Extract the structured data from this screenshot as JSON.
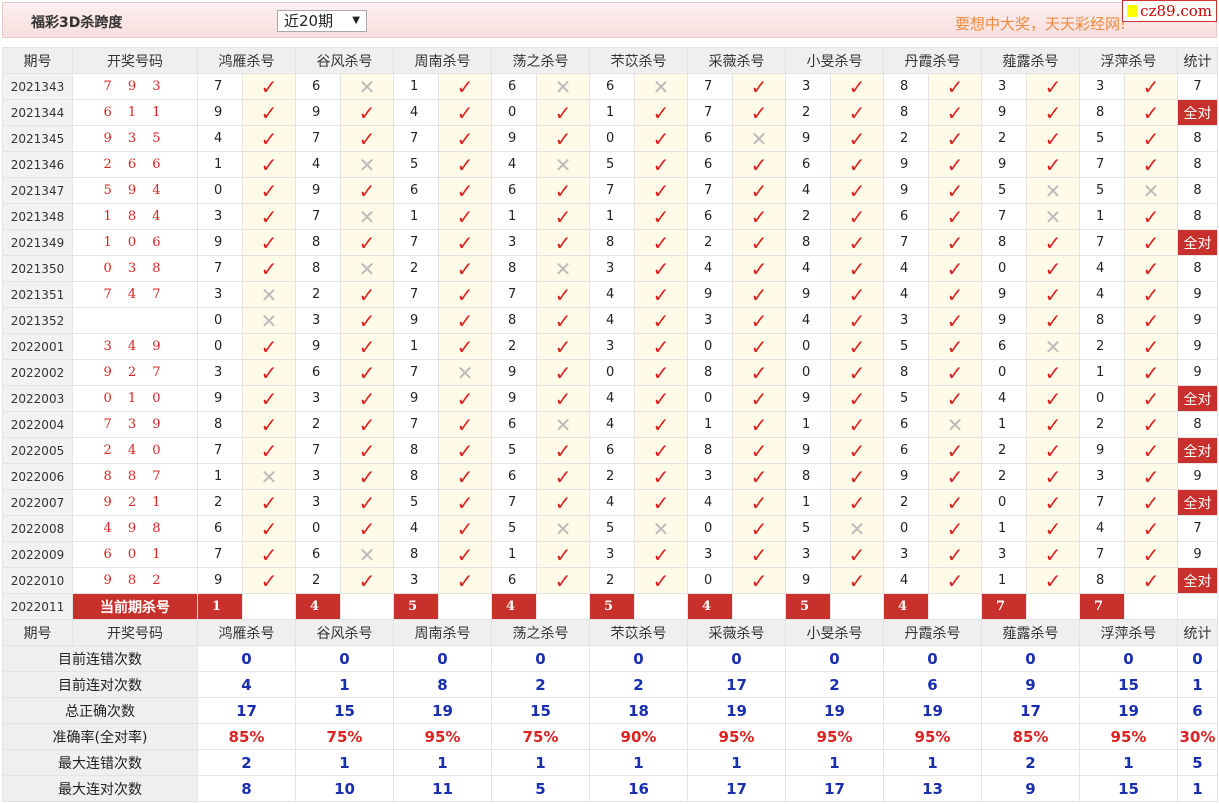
{
  "header": {
    "title": "福彩3D杀跨度",
    "range_select": "近20期",
    "slogan": "要想中大奖，天天彩经网!",
    "logo": "cz89.com"
  },
  "columns": {
    "period": "期号",
    "draw": "开奖号码",
    "experts": [
      "鸿雁杀号",
      "谷风杀号",
      "周南杀号",
      "荡之杀号",
      "芣苡杀号",
      "采薇杀号",
      "小旻杀号",
      "丹霞杀号",
      "薤露杀号",
      "浮萍杀号"
    ],
    "stat": "统计"
  },
  "marks": {
    "ok": "✓",
    "wrong": "✕"
  },
  "colors": {
    "accent": "#c8302c",
    "ok": "#e02020",
    "stat_blue": "#1a2fb0"
  },
  "rows": [
    {
      "period": "2021343",
      "draw": "7 9 3",
      "picks": [
        [
          7,
          1
        ],
        [
          6,
          0
        ],
        [
          1,
          1
        ],
        [
          6,
          0
        ],
        [
          6,
          0
        ],
        [
          7,
          1
        ],
        [
          3,
          1
        ],
        [
          8,
          1
        ],
        [
          3,
          1
        ],
        [
          3,
          1
        ]
      ],
      "stat": "7"
    },
    {
      "period": "2021344",
      "draw": "6 1 1",
      "picks": [
        [
          9,
          1
        ],
        [
          9,
          1
        ],
        [
          4,
          1
        ],
        [
          0,
          1
        ],
        [
          1,
          1
        ],
        [
          7,
          1
        ],
        [
          2,
          1
        ],
        [
          8,
          1
        ],
        [
          9,
          1
        ],
        [
          8,
          1
        ]
      ],
      "stat": "全对"
    },
    {
      "period": "2021345",
      "draw": "9 3 5",
      "picks": [
        [
          4,
          1
        ],
        [
          7,
          1
        ],
        [
          7,
          1
        ],
        [
          9,
          1
        ],
        [
          0,
          1
        ],
        [
          6,
          0
        ],
        [
          9,
          1
        ],
        [
          2,
          1
        ],
        [
          2,
          1
        ],
        [
          5,
          1
        ]
      ],
      "stat": "8"
    },
    {
      "period": "2021346",
      "draw": "2 6 6",
      "picks": [
        [
          1,
          1
        ],
        [
          4,
          0
        ],
        [
          5,
          1
        ],
        [
          4,
          0
        ],
        [
          5,
          1
        ],
        [
          6,
          1
        ],
        [
          6,
          1
        ],
        [
          9,
          1
        ],
        [
          9,
          1
        ],
        [
          7,
          1
        ]
      ],
      "stat": "8"
    },
    {
      "period": "2021347",
      "draw": "5 9 4",
      "picks": [
        [
          0,
          1
        ],
        [
          9,
          1
        ],
        [
          6,
          1
        ],
        [
          6,
          1
        ],
        [
          7,
          1
        ],
        [
          7,
          1
        ],
        [
          4,
          1
        ],
        [
          9,
          1
        ],
        [
          5,
          0
        ],
        [
          5,
          0
        ]
      ],
      "stat": "8"
    },
    {
      "period": "2021348",
      "draw": "1 8 4",
      "picks": [
        [
          3,
          1
        ],
        [
          7,
          0
        ],
        [
          1,
          1
        ],
        [
          1,
          1
        ],
        [
          1,
          1
        ],
        [
          6,
          1
        ],
        [
          2,
          1
        ],
        [
          6,
          1
        ],
        [
          7,
          0
        ],
        [
          1,
          1
        ]
      ],
      "stat": "8"
    },
    {
      "period": "2021349",
      "draw": "1 0 6",
      "picks": [
        [
          9,
          1
        ],
        [
          8,
          1
        ],
        [
          7,
          1
        ],
        [
          3,
          1
        ],
        [
          8,
          1
        ],
        [
          2,
          1
        ],
        [
          8,
          1
        ],
        [
          7,
          1
        ],
        [
          8,
          1
        ],
        [
          7,
          1
        ]
      ],
      "stat": "全对"
    },
    {
      "period": "2021350",
      "draw": "0 3 8",
      "picks": [
        [
          7,
          1
        ],
        [
          8,
          0
        ],
        [
          2,
          1
        ],
        [
          8,
          0
        ],
        [
          3,
          1
        ],
        [
          4,
          1
        ],
        [
          4,
          1
        ],
        [
          4,
          1
        ],
        [
          0,
          1
        ],
        [
          4,
          1
        ]
      ],
      "stat": "8"
    },
    {
      "period": "2021351",
      "draw": "7 4 7",
      "picks": [
        [
          3,
          0
        ],
        [
          2,
          1
        ],
        [
          7,
          1
        ],
        [
          7,
          1
        ],
        [
          4,
          1
        ],
        [
          9,
          1
        ],
        [
          9,
          1
        ],
        [
          4,
          1
        ],
        [
          9,
          1
        ],
        [
          4,
          1
        ]
      ],
      "stat": "9"
    },
    {
      "period": "2021352",
      "draw": "",
      "picks": [
        [
          0,
          0
        ],
        [
          3,
          1
        ],
        [
          9,
          1
        ],
        [
          8,
          1
        ],
        [
          4,
          1
        ],
        [
          3,
          1
        ],
        [
          4,
          1
        ],
        [
          3,
          1
        ],
        [
          9,
          1
        ],
        [
          8,
          1
        ]
      ],
      "stat": "9"
    },
    {
      "period": "2022001",
      "draw": "3 4 9",
      "picks": [
        [
          0,
          1
        ],
        [
          9,
          1
        ],
        [
          1,
          1
        ],
        [
          2,
          1
        ],
        [
          3,
          1
        ],
        [
          0,
          1
        ],
        [
          0,
          1
        ],
        [
          5,
          1
        ],
        [
          6,
          0
        ],
        [
          2,
          1
        ]
      ],
      "stat": "9"
    },
    {
      "period": "2022002",
      "draw": "9 2 7",
      "picks": [
        [
          3,
          1
        ],
        [
          6,
          1
        ],
        [
          7,
          0
        ],
        [
          9,
          1
        ],
        [
          0,
          1
        ],
        [
          8,
          1
        ],
        [
          0,
          1
        ],
        [
          8,
          1
        ],
        [
          0,
          1
        ],
        [
          1,
          1
        ]
      ],
      "stat": "9"
    },
    {
      "period": "2022003",
      "draw": "0 1 0",
      "picks": [
        [
          9,
          1
        ],
        [
          3,
          1
        ],
        [
          9,
          1
        ],
        [
          9,
          1
        ],
        [
          4,
          1
        ],
        [
          0,
          1
        ],
        [
          9,
          1
        ],
        [
          5,
          1
        ],
        [
          4,
          1
        ],
        [
          0,
          1
        ]
      ],
      "stat": "全对"
    },
    {
      "period": "2022004",
      "draw": "7 3 9",
      "picks": [
        [
          8,
          1
        ],
        [
          2,
          1
        ],
        [
          7,
          1
        ],
        [
          6,
          0
        ],
        [
          4,
          1
        ],
        [
          1,
          1
        ],
        [
          1,
          1
        ],
        [
          6,
          0
        ],
        [
          1,
          1
        ],
        [
          2,
          1
        ]
      ],
      "stat": "8"
    },
    {
      "period": "2022005",
      "draw": "2 4 0",
      "picks": [
        [
          7,
          1
        ],
        [
          7,
          1
        ],
        [
          8,
          1
        ],
        [
          5,
          1
        ],
        [
          6,
          1
        ],
        [
          8,
          1
        ],
        [
          9,
          1
        ],
        [
          6,
          1
        ],
        [
          2,
          1
        ],
        [
          9,
          1
        ]
      ],
      "stat": "全对"
    },
    {
      "period": "2022006",
      "draw": "8 8 7",
      "picks": [
        [
          1,
          0
        ],
        [
          3,
          1
        ],
        [
          8,
          1
        ],
        [
          6,
          1
        ],
        [
          2,
          1
        ],
        [
          3,
          1
        ],
        [
          8,
          1
        ],
        [
          9,
          1
        ],
        [
          2,
          1
        ],
        [
          3,
          1
        ]
      ],
      "stat": "9"
    },
    {
      "period": "2022007",
      "draw": "9 2 1",
      "picks": [
        [
          2,
          1
        ],
        [
          3,
          1
        ],
        [
          5,
          1
        ],
        [
          7,
          1
        ],
        [
          4,
          1
        ],
        [
          4,
          1
        ],
        [
          1,
          1
        ],
        [
          2,
          1
        ],
        [
          0,
          1
        ],
        [
          7,
          1
        ]
      ],
      "stat": "全对"
    },
    {
      "period": "2022008",
      "draw": "4 9 8",
      "picks": [
        [
          6,
          1
        ],
        [
          0,
          1
        ],
        [
          4,
          1
        ],
        [
          5,
          0
        ],
        [
          5,
          0
        ],
        [
          0,
          1
        ],
        [
          5,
          0
        ],
        [
          0,
          1
        ],
        [
          1,
          1
        ],
        [
          4,
          1
        ]
      ],
      "stat": "7"
    },
    {
      "period": "2022009",
      "draw": "6 0 1",
      "picks": [
        [
          7,
          1
        ],
        [
          6,
          0
        ],
        [
          8,
          1
        ],
        [
          1,
          1
        ],
        [
          3,
          1
        ],
        [
          3,
          1
        ],
        [
          3,
          1
        ],
        [
          3,
          1
        ],
        [
          3,
          1
        ],
        [
          7,
          1
        ]
      ],
      "stat": "9"
    },
    {
      "period": "2022010",
      "draw": "9 8 2",
      "picks": [
        [
          9,
          1
        ],
        [
          2,
          1
        ],
        [
          3,
          1
        ],
        [
          6,
          1
        ],
        [
          2,
          1
        ],
        [
          0,
          1
        ],
        [
          9,
          1
        ],
        [
          4,
          1
        ],
        [
          1,
          1
        ],
        [
          8,
          1
        ]
      ],
      "stat": "全对"
    }
  ],
  "current": {
    "period": "2022011",
    "label": "当前期杀号",
    "kills": [
      "1",
      "4",
      "5",
      "4",
      "5",
      "4",
      "5",
      "4",
      "7",
      "7"
    ]
  },
  "stats": [
    {
      "label": "目前连错次数",
      "values": [
        "0",
        "0",
        "0",
        "0",
        "0",
        "0",
        "0",
        "0",
        "0",
        "0",
        "0"
      ]
    },
    {
      "label": "目前连对次数",
      "values": [
        "4",
        "1",
        "8",
        "2",
        "2",
        "17",
        "2",
        "6",
        "9",
        "15",
        "1"
      ]
    },
    {
      "label": "总正确次数",
      "values": [
        "17",
        "15",
        "19",
        "15",
        "18",
        "19",
        "19",
        "19",
        "17",
        "19",
        "6"
      ]
    },
    {
      "label": "准确率(全对率)",
      "values": [
        "85%",
        "75%",
        "95%",
        "75%",
        "90%",
        "95%",
        "95%",
        "95%",
        "85%",
        "95%",
        "30%"
      ],
      "red": true
    },
    {
      "label": "最大连错次数",
      "values": [
        "2",
        "1",
        "1",
        "1",
        "1",
        "1",
        "1",
        "1",
        "2",
        "1",
        "5"
      ]
    },
    {
      "label": "最大连对次数",
      "values": [
        "8",
        "10",
        "11",
        "5",
        "16",
        "17",
        "17",
        "13",
        "9",
        "15",
        "1"
      ]
    }
  ]
}
